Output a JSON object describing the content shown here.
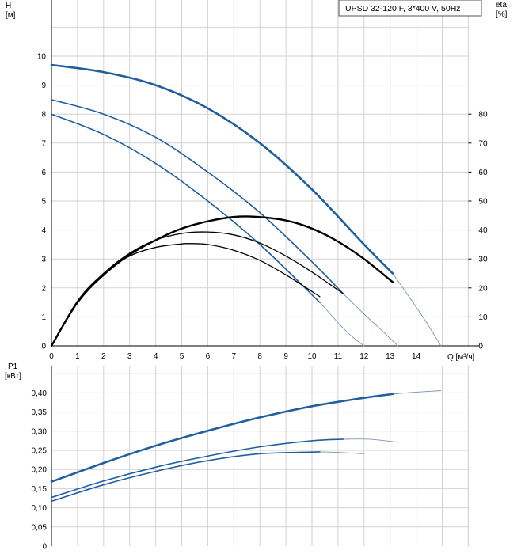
{
  "chart_data": [
    {
      "type": "line",
      "title": "UPSD 32-120 F, 3*400 V, 50Hz",
      "ylabel": "H",
      "yunit": "[м]",
      "y2label": "eta",
      "y2unit": "[%]",
      "xlabel": "Q [м³/ч]",
      "xlim": [
        0,
        16
      ],
      "ylim": [
        0,
        11
      ],
      "y2lim": [
        0,
        110
      ],
      "xticks": [
        0,
        1,
        2,
        3,
        4,
        5,
        6,
        7,
        8,
        9,
        10,
        11,
        12,
        13,
        14
      ],
      "yticks": [
        0,
        1,
        2,
        3,
        4,
        5,
        6,
        7,
        8,
        9,
        10
      ],
      "y2ticks": [
        0,
        10,
        20,
        30,
        40,
        50,
        60,
        70,
        80
      ],
      "grid": true,
      "series": [
        {
          "axis": "H",
          "color": "#1f5fa0",
          "width": 2.6,
          "x": [
            0,
            2,
            4,
            6,
            8,
            10,
            12,
            13.1
          ],
          "values": [
            9.7,
            9.45,
            9.0,
            8.2,
            7.0,
            5.4,
            3.5,
            2.5
          ],
          "ext_x": [
            13.1,
            13.8,
            14.4,
            14.95
          ],
          "ext_values": [
            2.5,
            1.6,
            0.8,
            0
          ]
        },
        {
          "axis": "H",
          "color": "#1f5fa0",
          "width": 1.6,
          "x": [
            0,
            2,
            4,
            6,
            8,
            10,
            11.2
          ],
          "values": [
            8.5,
            8.0,
            7.2,
            6.0,
            4.6,
            2.9,
            1.8
          ],
          "ext_x": [
            11.2,
            12.0,
            12.6,
            13.3
          ],
          "ext_values": [
            1.8,
            1.1,
            0.6,
            0
          ]
        },
        {
          "axis": "H",
          "color": "#1f5fa0",
          "width": 1.6,
          "x": [
            0,
            2,
            4,
            6,
            8,
            10.3
          ],
          "values": [
            8.0,
            7.3,
            6.3,
            5.0,
            3.5,
            1.5
          ],
          "ext_x": [
            10.3,
            11.0,
            11.5,
            12.0
          ],
          "ext_values": [
            1.5,
            0.8,
            0.35,
            0
          ]
        },
        {
          "axis": "eta",
          "color": "#000000",
          "width": 2.4,
          "x": [
            0,
            1,
            2,
            3,
            4,
            5,
            6,
            7,
            7.8,
            9,
            10,
            11,
            12,
            13.1
          ],
          "values": [
            0,
            15,
            24.5,
            31.5,
            36.5,
            40.5,
            43,
            44.5,
            44.6,
            43.3,
            40.5,
            36,
            30,
            22
          ]
        },
        {
          "axis": "eta",
          "color": "#000000",
          "width": 1.3,
          "x": [
            0,
            1,
            2,
            3,
            4,
            5,
            6,
            7,
            8,
            9,
            10,
            11.2
          ],
          "values": [
            0,
            15,
            25,
            32,
            36.5,
            38.8,
            39.3,
            38.3,
            35.5,
            31,
            25.5,
            18
          ]
        },
        {
          "axis": "eta",
          "color": "#000000",
          "width": 1.3,
          "x": [
            0,
            1,
            2,
            3,
            4,
            5,
            5.3,
            6,
            7,
            8,
            9,
            10.3
          ],
          "values": [
            0,
            15.5,
            25,
            31,
            34,
            35.2,
            35.3,
            35,
            33,
            29.5,
            24.5,
            17
          ]
        }
      ]
    },
    {
      "type": "line",
      "ylabel": "P1",
      "yunit": "[кВт]",
      "xlim": [
        0,
        16
      ],
      "ylim": [
        0,
        0.45
      ],
      "yticks": [
        "0",
        "0,05",
        "0,10",
        "0,15",
        "0,20",
        "0,25",
        "0,30",
        "0,35",
        "0,40"
      ],
      "grid": true,
      "series": [
        {
          "color": "#1f5fa0",
          "width": 2.6,
          "x": [
            0,
            2,
            4,
            6,
            8,
            10,
            12,
            13.1
          ],
          "values": [
            0.168,
            0.217,
            0.262,
            0.301,
            0.336,
            0.365,
            0.387,
            0.397
          ],
          "ext_x": [
            13.1,
            14,
            14.95
          ],
          "ext_values": [
            0.397,
            0.402,
            0.406
          ]
        },
        {
          "color": "#1f5fa0",
          "width": 1.6,
          "x": [
            0,
            2,
            4,
            6,
            8,
            10,
            11.2
          ],
          "values": [
            0.127,
            0.17,
            0.206,
            0.235,
            0.259,
            0.275,
            0.279
          ],
          "ext_x": [
            11.2,
            12.2,
            13.3
          ],
          "ext_values": [
            0.279,
            0.279,
            0.271
          ]
        },
        {
          "color": "#1f5fa0",
          "width": 1.6,
          "x": [
            0,
            2,
            4,
            6,
            8,
            10.3
          ],
          "values": [
            0.117,
            0.16,
            0.195,
            0.223,
            0.241,
            0.246
          ],
          "ext_x": [
            10.3,
            11.2,
            12.0
          ],
          "ext_values": [
            0.246,
            0.244,
            0.241
          ]
        }
      ]
    }
  ]
}
